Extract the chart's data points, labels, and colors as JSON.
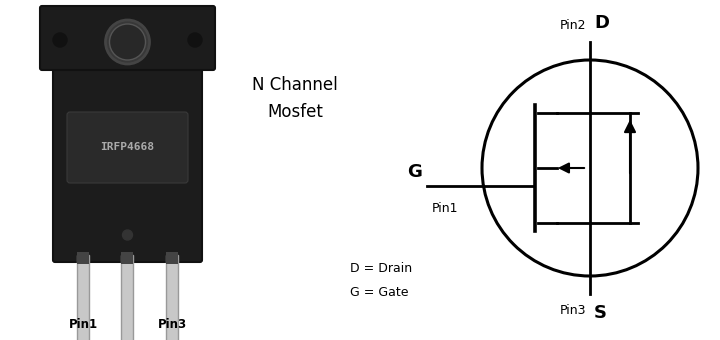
{
  "bg_color": "#ffffff",
  "title_line1": "N Channel",
  "title_line2": "Mosfet",
  "chip_label": "IRFP4668",
  "pin1_label": "Pin1",
  "pin3_label": "Pin3",
  "pin2_label": "Pin2",
  "pin_s_label": "S",
  "pin_d_label": "D",
  "pin_g_label": "G",
  "legend_d": "D = Drain",
  "legend_g": "G = Gate",
  "line_color": "#000000",
  "body_color": "#1c1c1c",
  "body_edge": "#111111",
  "lead_face": "#c8c8c8",
  "lead_edge": "#999999",
  "label_box_color": "#2a2a2a",
  "chip_text_color": "#aaaaaa",
  "text_color": "#000000",
  "font_size_title": 12,
  "font_size_pin": 9,
  "font_size_legend": 9,
  "font_size_D_S": 13,
  "font_size_G": 13
}
